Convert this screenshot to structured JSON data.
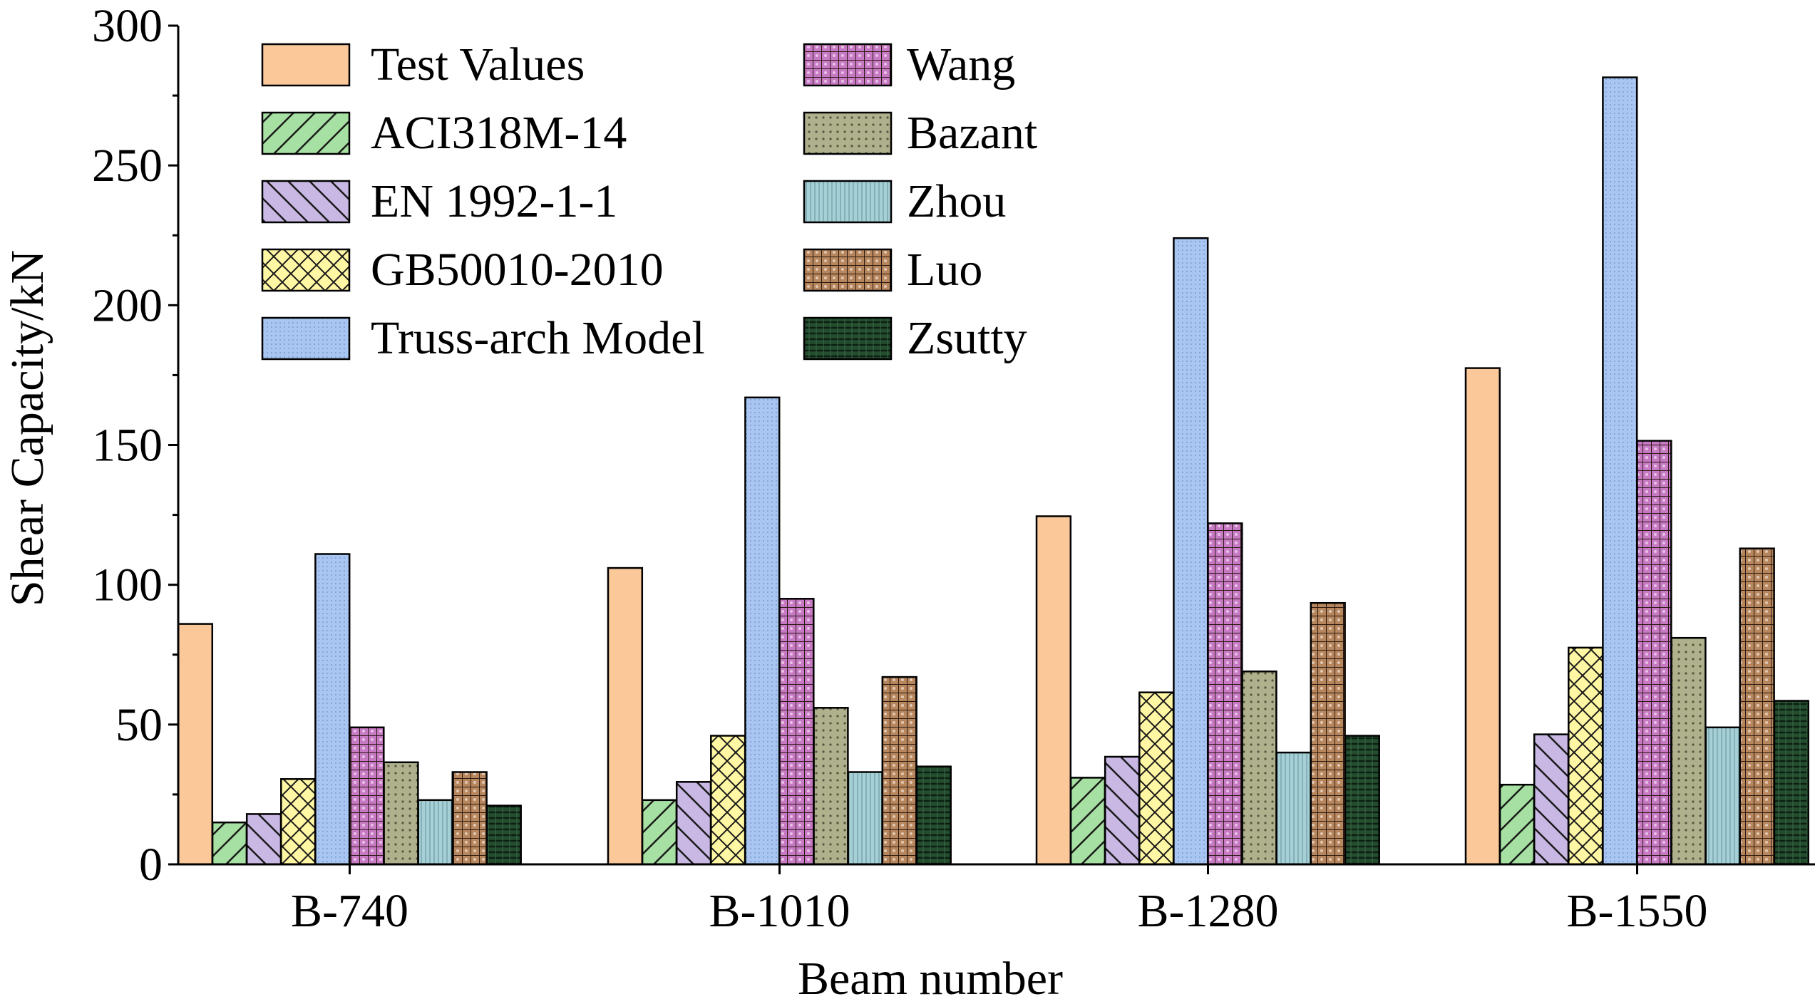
{
  "chart_data": {
    "type": "bar",
    "title": "",
    "xlabel": "Beam number",
    "ylabel": "Shear Capacity/kN",
    "ylim": [
      0,
      300
    ],
    "yticks": [
      0,
      50,
      100,
      150,
      200,
      250,
      300
    ],
    "grid": false,
    "legend_position": "top-left",
    "categories": [
      "B-740",
      "B-1010",
      "B-1280",
      "B-1550"
    ],
    "series": [
      {
        "name": "Test Values",
        "values": [
          86,
          106,
          124.5,
          177.5
        ],
        "color": "#FBC89A",
        "pattern": "none"
      },
      {
        "name": "ACI318M-14",
        "values": [
          15,
          23,
          31,
          28.5
        ],
        "color": "#A6E0A2",
        "pattern": "diag-up"
      },
      {
        "name": "EN 1992-1-1",
        "values": [
          18,
          29.5,
          38.5,
          46.5
        ],
        "color": "#C9B8E4",
        "pattern": "diag-down"
      },
      {
        "name": "GB50010-2010",
        "values": [
          30.5,
          46,
          61.5,
          77.5
        ],
        "color": "#FFF7A3",
        "pattern": "crosshatch"
      },
      {
        "name": "Truss-arch Model",
        "values": [
          111,
          167,
          224,
          281.5
        ],
        "color": "#A9C5F2",
        "pattern": "fine-dots"
      },
      {
        "name": "Wang",
        "values": [
          49,
          95,
          122,
          151.5
        ],
        "color": "#C879C4",
        "pattern": "grid-dots"
      },
      {
        "name": "Bazant",
        "values": [
          36.5,
          56,
          69,
          81
        ],
        "color": "#AFB08C",
        "pattern": "dots"
      },
      {
        "name": "Zhou",
        "values": [
          23,
          33,
          40,
          49
        ],
        "color": "#A6CFD6",
        "pattern": "vlines"
      },
      {
        "name": "Luo",
        "values": [
          33,
          67,
          93.5,
          113
        ],
        "color": "#B7865C",
        "pattern": "grid-dots"
      },
      {
        "name": "Zsutty",
        "values": [
          21,
          35,
          46,
          58.5
        ],
        "color": "#234D2E",
        "pattern": "hlines"
      }
    ]
  }
}
